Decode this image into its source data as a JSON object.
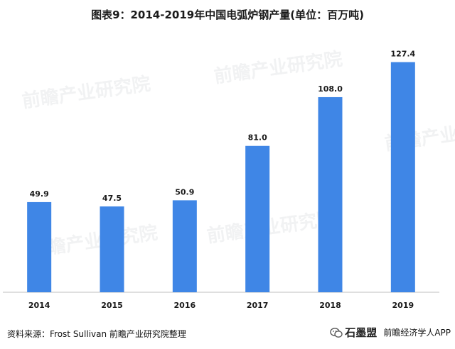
{
  "chart_data": {
    "type": "bar",
    "title": "图表9：2014-2019年中国电弧炉钢产量(单位：百万吨)",
    "categories": [
      "2014",
      "2015",
      "2016",
      "2017",
      "2018",
      "2019"
    ],
    "values": [
      49.9,
      47.5,
      50.9,
      81.0,
      108.0,
      127.4
    ],
    "value_labels": [
      "49.9",
      "47.5",
      "50.9",
      "81.0",
      "108.0",
      "127.4"
    ],
    "ylim": [
      0,
      150
    ],
    "bar_color": "#3f86e6",
    "grid": false,
    "legend": "none"
  },
  "source": "资料来源：Frost Sullivan  前瞻产业研究院整理",
  "watermark": "前瞻产业研究院",
  "badge": {
    "text": "前瞻经济学人APP",
    "name": "石墨盟",
    "icon": "wechat-icon"
  }
}
